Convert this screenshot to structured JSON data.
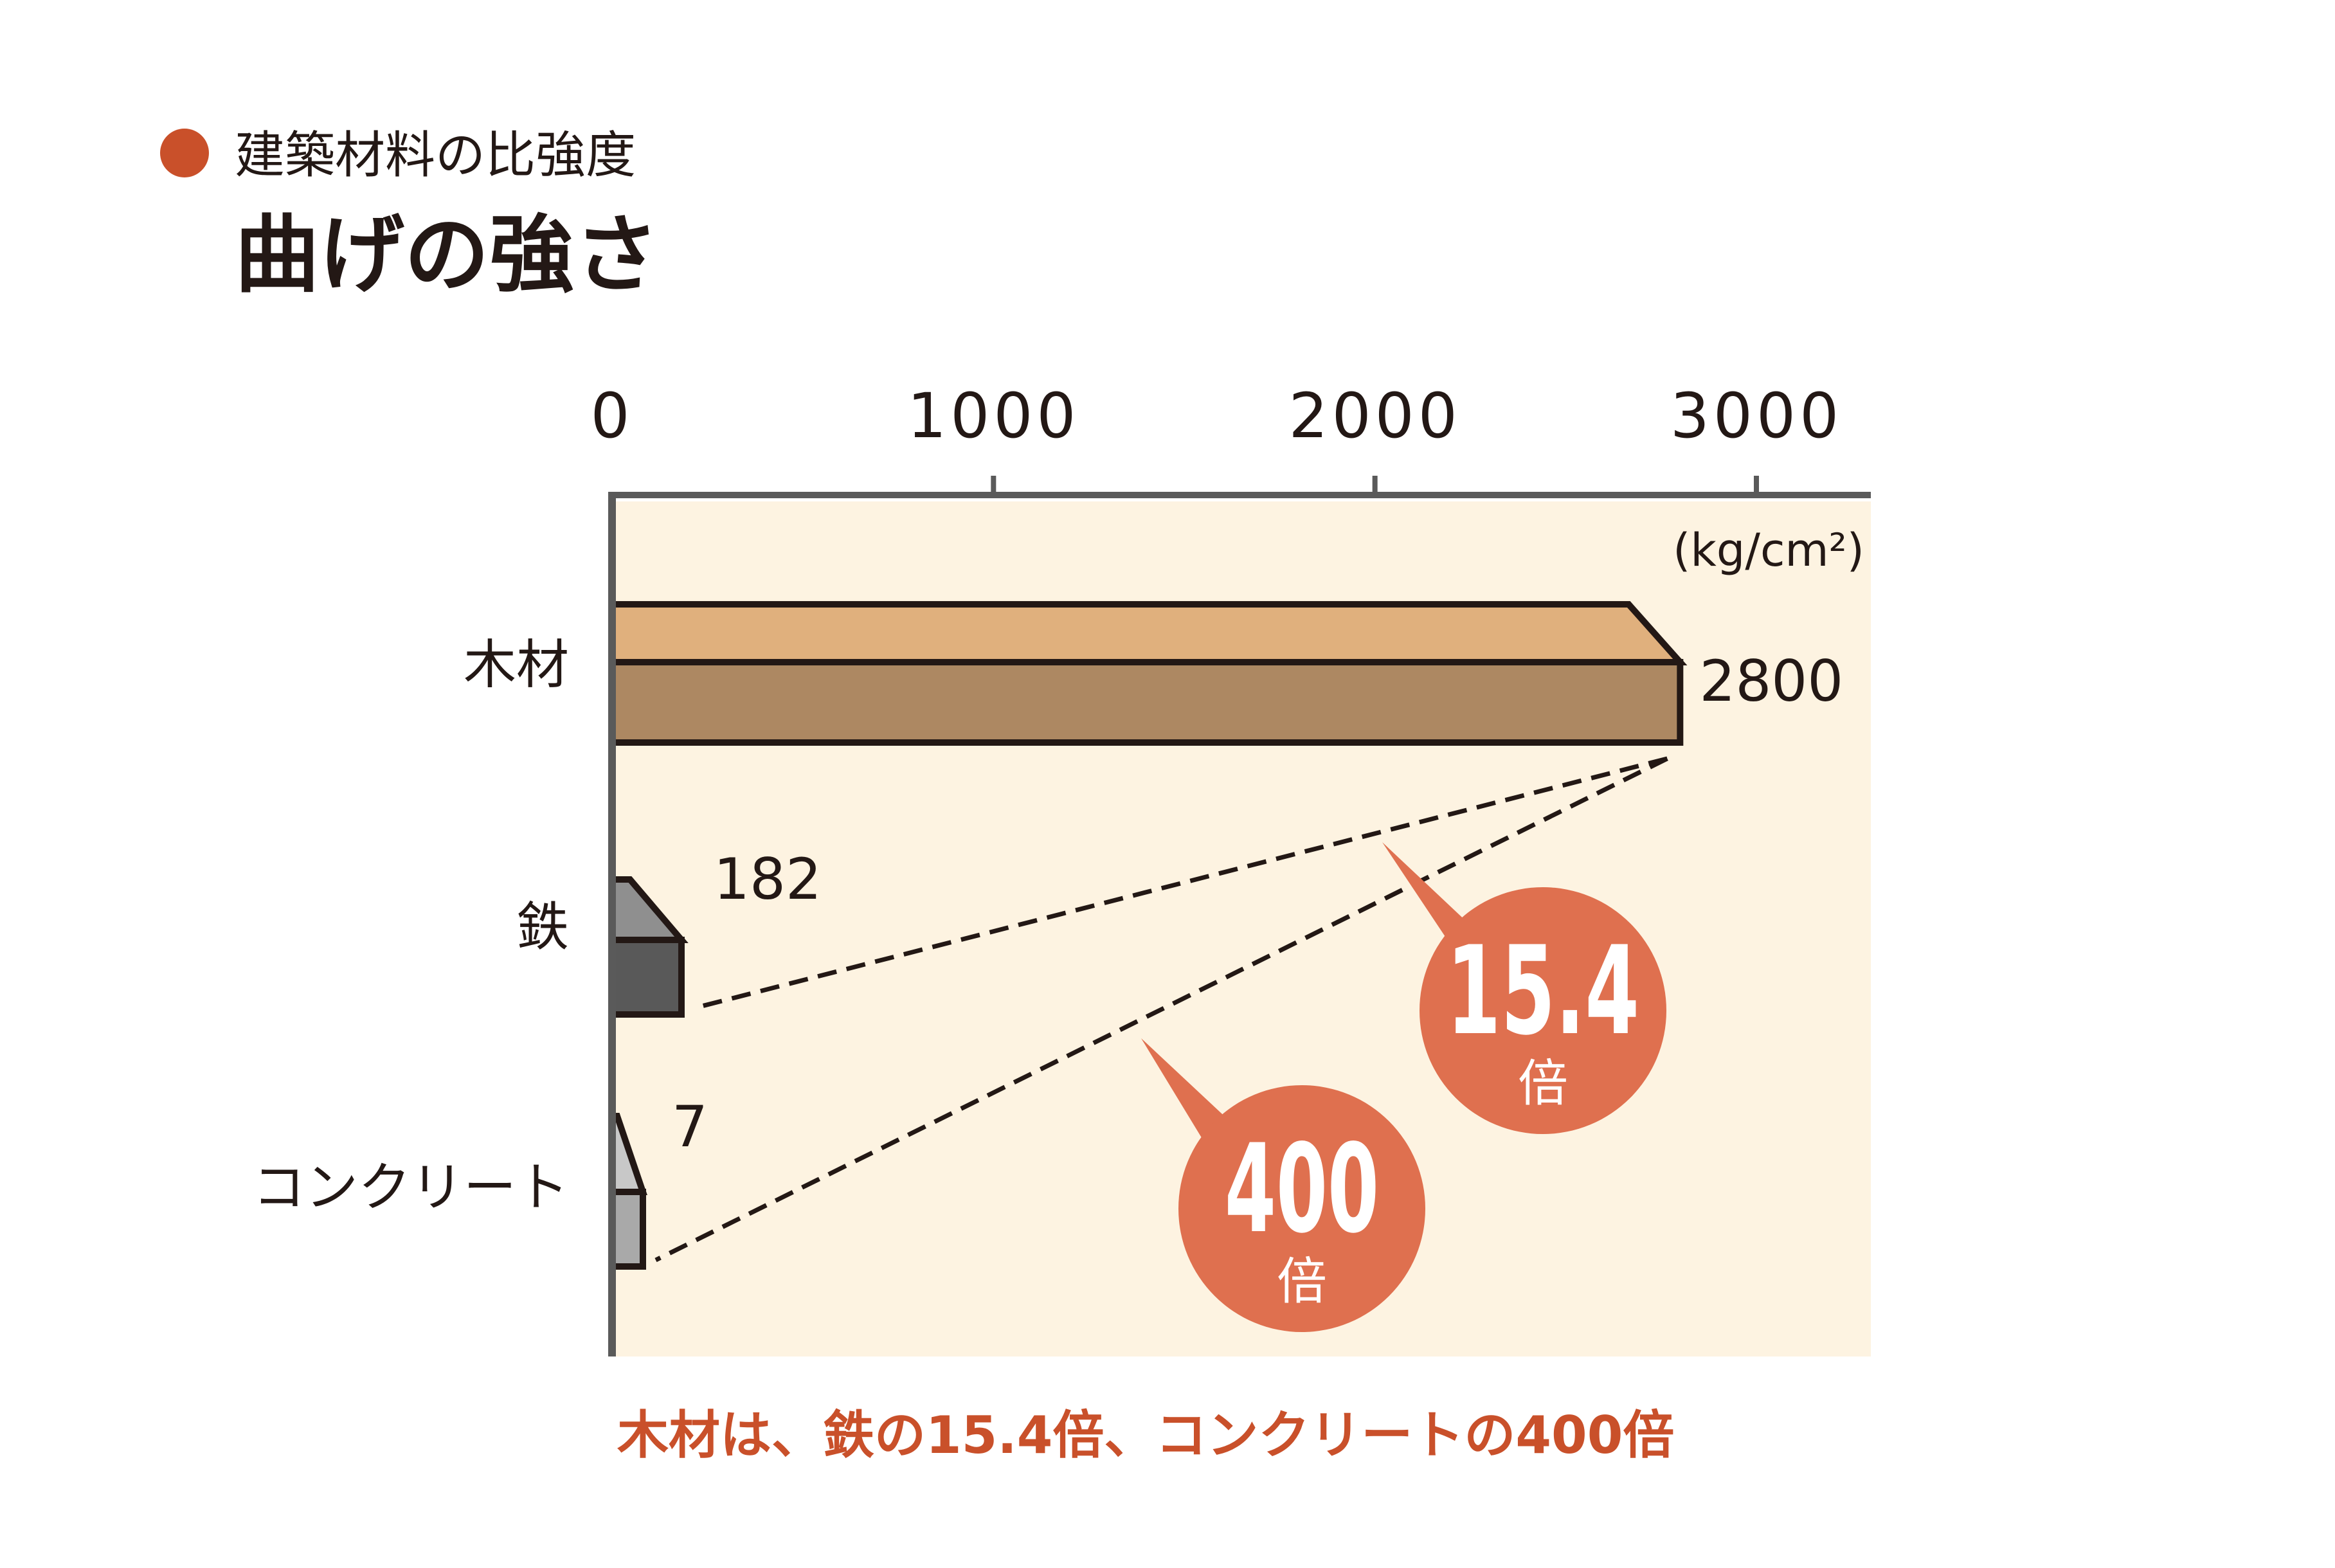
{
  "colors": {
    "accent": "#c9502a",
    "plot_bg": "#fdf3e1",
    "axis": "#5a5a5a",
    "outline": "#231815",
    "bubble": "#df704f",
    "bars": [
      {
        "top": "#e0b07d",
        "front": "#ad8862"
      },
      {
        "top": "#8f8f8f",
        "front": "#595959"
      },
      {
        "top": "#c8c8c8",
        "front": "#a9a9a9"
      }
    ]
  },
  "header": {
    "subtitle": "建築材料の比強度",
    "title": "曲げの強さ"
  },
  "footer": {
    "note": "木材は、鉄の15.4倍、コンクリートの400倍"
  },
  "chart_data": {
    "type": "bar",
    "orientation": "horizontal",
    "title": "曲げの強さ",
    "subtitle": "建築材料の比強度",
    "unit_label": "(kg/cm²)",
    "categories": [
      "木材",
      "鉄",
      "コンクリート"
    ],
    "values": [
      2800,
      182,
      7
    ],
    "value_labels": [
      "2800",
      "182",
      "7"
    ],
    "xlim": [
      0,
      3300
    ],
    "ticks": [
      0,
      1000,
      2000,
      3000
    ],
    "tick_labels": [
      "0",
      "1000",
      "2000",
      "3000"
    ],
    "grid": false,
    "annotations": [
      {
        "number": "15.4",
        "unit": "倍",
        "compares": [
          "木材",
          "鉄"
        ]
      },
      {
        "number": "400",
        "unit": "倍",
        "compares": [
          "木材",
          "コンクリート"
        ]
      }
    ]
  }
}
